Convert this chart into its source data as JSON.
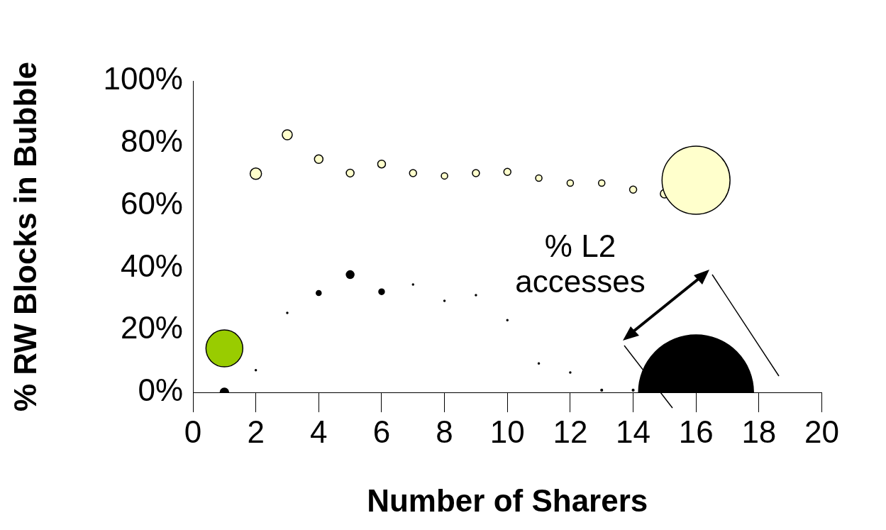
{
  "chart_data": {
    "type": "bubble",
    "xlabel": "Number of Sharers",
    "ylabel": "% RW Blocks in Bubble",
    "xlim": [
      0,
      20
    ],
    "xticks": [
      0,
      2,
      4,
      6,
      8,
      10,
      12,
      14,
      16,
      18,
      20
    ],
    "ylim": [
      0,
      100
    ],
    "yticks": [
      {
        "value": 0,
        "label": "0%"
      },
      {
        "value": 20,
        "label": "20%"
      },
      {
        "value": 40,
        "label": "40%"
      },
      {
        "value": 60,
        "label": "60%"
      },
      {
        "value": 80,
        "label": "80%"
      },
      {
        "value": 100,
        "label": "100%"
      }
    ],
    "grid": false,
    "legend": false,
    "annotations": [
      "% L2 accesses"
    ],
    "series": [
      {
        "color": "#99cc00",
        "x": [
          1
        ],
        "values": [
          14.1
        ],
        "sizes": [
          0.103
        ]
      },
      {
        "color": "#ffffcc",
        "x": [
          2,
          3,
          4,
          5,
          6,
          7,
          8,
          9,
          10,
          11,
          12,
          13,
          14,
          15,
          16
        ],
        "values": [
          70.2,
          82.7,
          74.9,
          70.4,
          73.3,
          70.4,
          69.5,
          70.4,
          70.8,
          68.8,
          67.2,
          67.2,
          65.1,
          63.8,
          68.1
        ],
        "sizes": [
          0.0098,
          0.0075,
          0.0055,
          0.0046,
          0.0046,
          0.0038,
          0.0031,
          0.0038,
          0.0038,
          0.0031,
          0.0031,
          0.0031,
          0.0038,
          0.0055,
          0.35
        ]
      },
      {
        "color": "#000000",
        "x": [
          1,
          2,
          3,
          4,
          5,
          6,
          7,
          8,
          9,
          10,
          11,
          12,
          13,
          14,
          16
        ],
        "values": [
          0,
          7.1,
          25.5,
          31.9,
          37.8,
          32.3,
          34.6,
          29.4,
          31.2,
          23.2,
          9.3,
          6.4,
          0.7,
          0.7,
          0
        ],
        "sizes": [
          0.0055,
          0.00015,
          0.00015,
          0.0019,
          0.0046,
          0.0024,
          0.00015,
          0.00015,
          0.00015,
          0.00015,
          0.00015,
          0.00015,
          0.00026,
          0.00026,
          1
        ]
      }
    ]
  }
}
